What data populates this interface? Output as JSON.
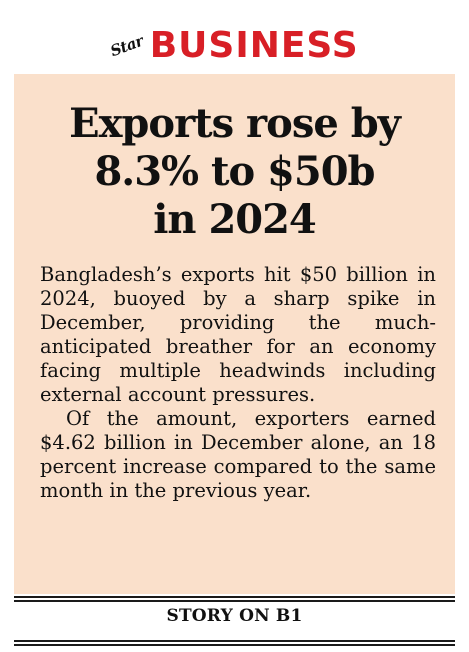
{
  "masthead": {
    "logo_text": "Star",
    "section": "BUSINESS",
    "accent_color": "#d81f26"
  },
  "panel": {
    "background_color": "#fae0cb"
  },
  "headline": {
    "line1": "Exports rose by",
    "line2": "8.3% to $50b",
    "line3": "in 2024"
  },
  "body": {
    "paragraph1": "Bangladesh’s exports hit $50 billion in 2024, buoyed by a sharp spike in December, providing the much-anticipated breather for an economy facing multiple headwinds including external account pressures.",
    "paragraph2": "Of the amount, exporters earned $4.62 billion in December alone, an 18 percent increase compared to the same month in the previous year."
  },
  "footer": {
    "label": "STORY ON B1"
  }
}
